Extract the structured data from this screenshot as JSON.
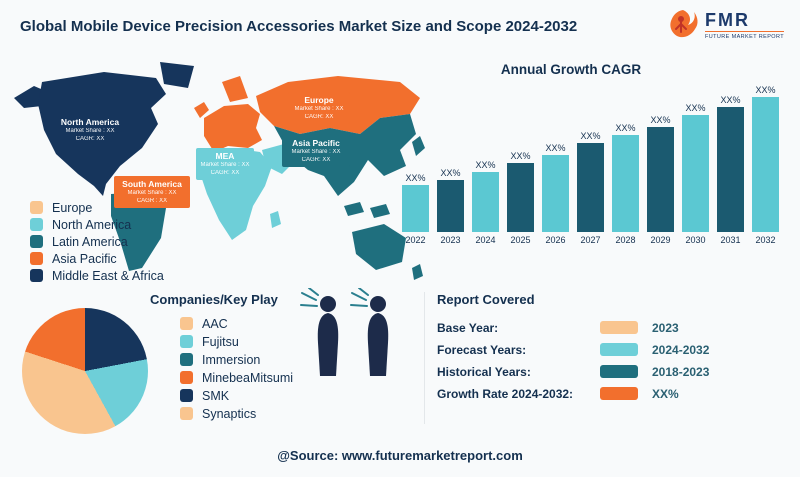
{
  "header": {
    "title": "Global Mobile Device Precision Accessories Market Size and Scope 2024-2032",
    "logo": {
      "brand": "FMR",
      "tagline": "FUTURE MARKET REPORT"
    }
  },
  "map": {
    "colors": {
      "north_america": "#16355c",
      "latin_america": "#1f6f7e",
      "europe_russia": "#f26f2d",
      "africa_mea": "#6ecfd8",
      "asia_pacific": "#1f6f7e",
      "australia": "#1f6f7e"
    },
    "labels": [
      {
        "title": "North America",
        "share": "Market Share : XX",
        "cagr": "CAGR: XX",
        "bg": "transparent"
      },
      {
        "title": "Europe",
        "share": "Market Share : XX",
        "cagr": "CAGR: XX",
        "bg": "#f26f2d"
      },
      {
        "title": "MEA",
        "share": "Market Share : XX",
        "cagr": "CAGR: XX",
        "bg": "#6ecfd8"
      },
      {
        "title": "Asia Pacific",
        "share": "Market Share : XX",
        "cagr": "CAGR: XX",
        "bg": "#1f6f7e"
      },
      {
        "title": "South America",
        "share": "Market Share : XX",
        "cagr": "CAGR : XX",
        "bg": "#f26f2d"
      }
    ]
  },
  "legend": {
    "items": [
      {
        "label": "Europe",
        "color": "#f9c58f"
      },
      {
        "label": "North America",
        "color": "#6ecfd8"
      },
      {
        "label": "Latin America",
        "color": "#1f6f7e"
      },
      {
        "label": "Asia Pacific",
        "color": "#f26f2d"
      },
      {
        "label": "Middle East & Africa",
        "color": "#16355c"
      }
    ]
  },
  "chart_data": [
    {
      "type": "bar",
      "title": "Annual Growth CAGR",
      "categories": [
        "2022",
        "2023",
        "2024",
        "2025",
        "2026",
        "2027",
        "2028",
        "2029",
        "2030",
        "2031",
        "2032"
      ],
      "bar_labels": [
        "XX%",
        "XX%",
        "XX%",
        "XX%",
        "XX%",
        "XX%",
        "XX%",
        "XX%",
        "XX%",
        "XX%",
        "XX%"
      ],
      "relative_heights": [
        47,
        52,
        60,
        69,
        77,
        89,
        97,
        105,
        117,
        125,
        135
      ],
      "colors": [
        "#5bc8d2",
        "#1b5a70"
      ],
      "xlabel": "",
      "ylabel": "",
      "legend_position": "none",
      "grid": false
    },
    {
      "type": "pie",
      "title": "Companies/Key Play",
      "slices": [
        {
          "label": "SMK",
          "color": "#16355c",
          "value": 22
        },
        {
          "label": "Fujitsu",
          "color": "#6ecfd8",
          "value": 20
        },
        {
          "label": "AAC",
          "color": "#f9c58f",
          "value": 38
        },
        {
          "label": "MinebeaMitsumi",
          "color": "#f26f2d",
          "value": 20
        }
      ]
    }
  ],
  "companies": {
    "title": "Companies/Key Play",
    "items": [
      {
        "label": "AAC",
        "color": "#f9c58f"
      },
      {
        "label": "Fujitsu",
        "color": "#6ecfd8"
      },
      {
        "label": "Immersion",
        "color": "#1f6f7e"
      },
      {
        "label": "MinebeaMitsumi",
        "color": "#f26f2d"
      },
      {
        "label": "SMK",
        "color": "#16355c"
      },
      {
        "label": "Synaptics",
        "color": "#f9c58f"
      }
    ]
  },
  "report": {
    "title": "Report Covered",
    "rows": [
      {
        "label": "Base Year:",
        "value": "2023",
        "color": "#f9c58f"
      },
      {
        "label": "Forecast Years:",
        "value": "2024-2032",
        "color": "#6ecfd8"
      },
      {
        "label": "Historical Years:",
        "value": "2018-2023",
        "color": "#1f6f7e"
      },
      {
        "label": "Growth Rate 2024-2032:",
        "value": "XX%",
        "color": "#f26f2d"
      }
    ]
  },
  "footer": {
    "source": "@Source: www.futuremarketreport.com"
  }
}
